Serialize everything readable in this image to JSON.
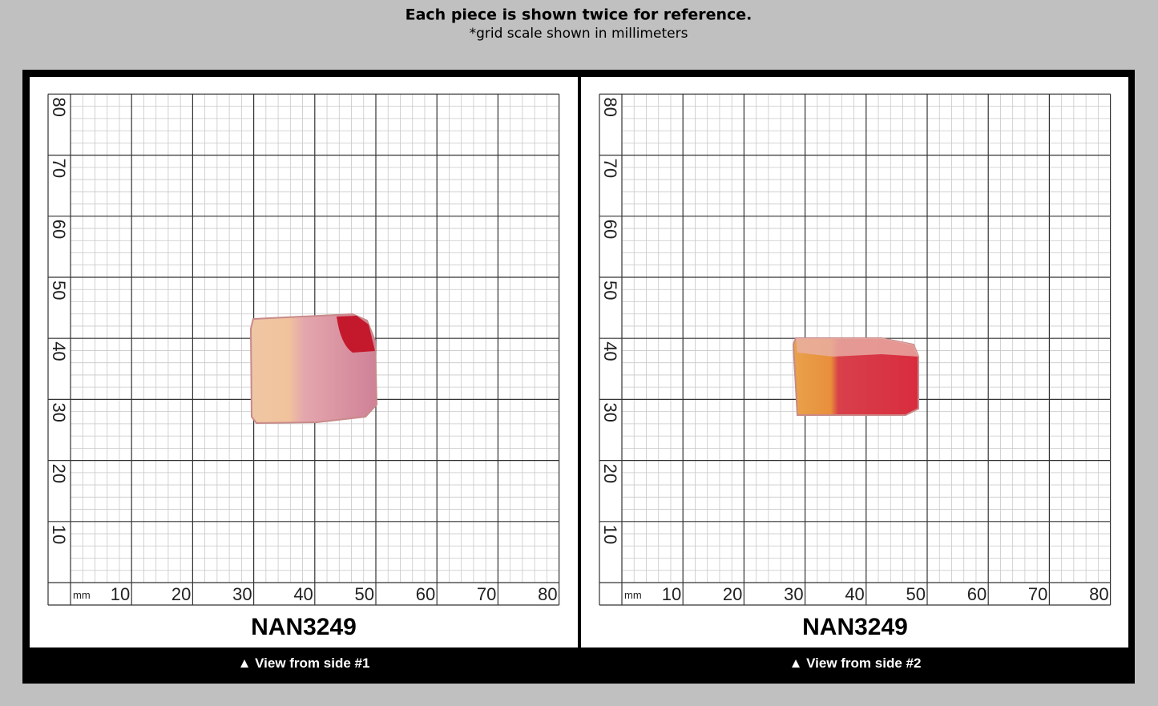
{
  "header": {
    "title": "Each piece is shown twice for reference.",
    "subtitle": "*grid scale shown in millimeters"
  },
  "grid": {
    "unit": "mm",
    "labels": [
      10,
      20,
      30,
      40,
      50,
      60,
      70,
      80
    ]
  },
  "panels": [
    {
      "name": "NAN3249",
      "caption": "▲ View from side #1"
    },
    {
      "name": "NAN3249",
      "caption": "▲ View from side #2"
    }
  ]
}
